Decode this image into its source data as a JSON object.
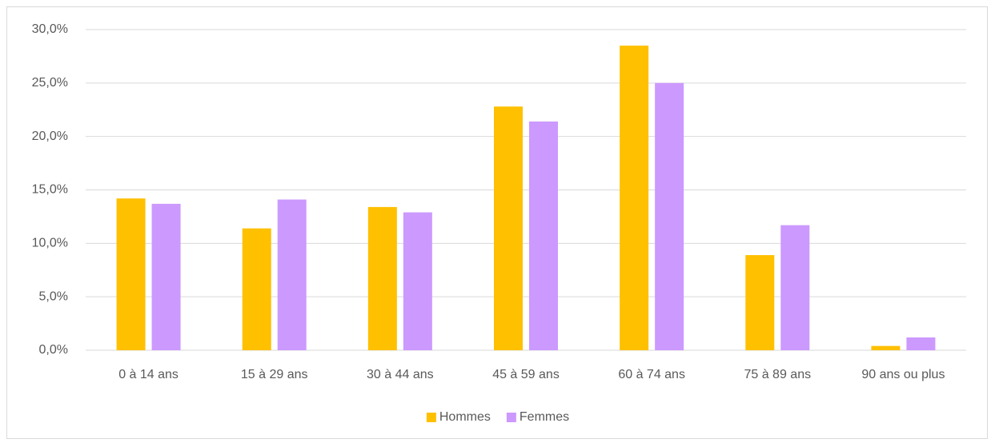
{
  "chart_data": {
    "type": "bar",
    "categories": [
      "0 à 14 ans",
      "15 à 29 ans",
      "30 à 44 ans",
      "45 à 59 ans",
      "60 à 74 ans",
      "75 à 89 ans",
      "90 ans ou plus"
    ],
    "series": [
      {
        "name": "Hommes",
        "color": "#ffc000",
        "values": [
          14.2,
          11.4,
          13.4,
          22.8,
          28.5,
          8.9,
          0.4
        ]
      },
      {
        "name": "Femmes",
        "color": "#cc99ff",
        "values": [
          13.7,
          14.1,
          12.9,
          21.4,
          25.0,
          11.7,
          1.2
        ]
      }
    ],
    "ylim": [
      0,
      30
    ],
    "yticks": [
      {
        "value": 0,
        "label": "0,0%"
      },
      {
        "value": 5,
        "label": "5,0%"
      },
      {
        "value": 10,
        "label": "10,0%"
      },
      {
        "value": 15,
        "label": "15,0%"
      },
      {
        "value": 20,
        "label": "20,0%"
      },
      {
        "value": 25,
        "label": "25,0%"
      },
      {
        "value": 30,
        "label": "30,0%"
      }
    ],
    "grid": true,
    "legend": "bottom"
  }
}
